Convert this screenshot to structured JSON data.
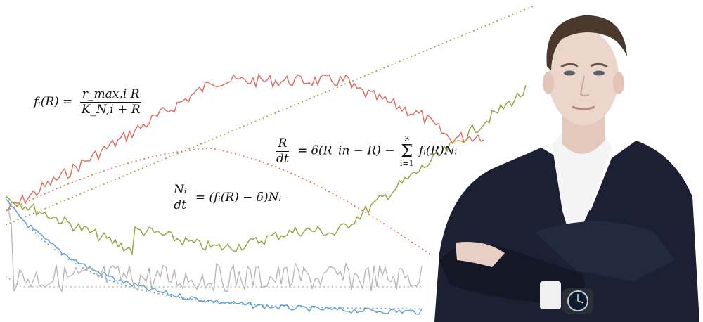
{
  "equations": {
    "eq1": {
      "lhs": "fᵢ(R) =",
      "numerator": "r_max,i R",
      "denominator": "K_N,i + R"
    },
    "eq2": {
      "lhs_numerator": "R",
      "lhs_denominator": "dt",
      "rhs_a": "= δ(R_in − R) −",
      "sum_upper": "3",
      "sum_symbol": "Σ",
      "sum_lower": "i=1",
      "rhs_b": "fᵢ(R)Nᵢ"
    },
    "eq3": {
      "lhs_numerator": "Nᵢ",
      "lhs_denominator": "dt",
      "rhs": "= (fᵢ(R) − δ)Nᵢ"
    }
  },
  "colors": {
    "red": "#e0675c",
    "olive": "#8fa43a",
    "blue": "#5b9bd5",
    "gray": "#b5b5b5",
    "suit": "#1b2033",
    "shirt": "#f4f4f4",
    "skin": "#e9d3c8",
    "hair": "#4a3a2e"
  },
  "decorative_icons": [
    "person-photo",
    "wristwatch-icon"
  ]
}
